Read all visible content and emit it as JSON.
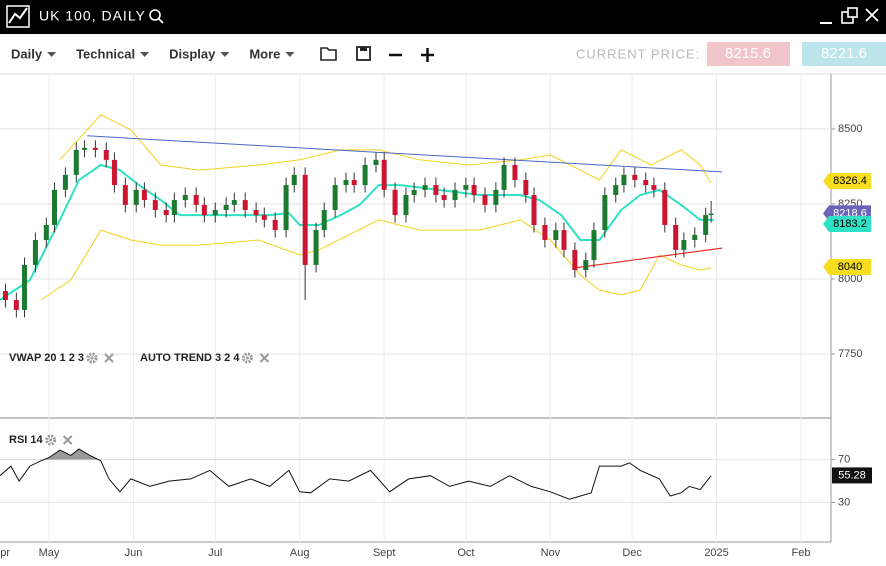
{
  "header": {
    "title": "UK 100, DAILY"
  },
  "toolbar": {
    "menus": [
      "Daily",
      "Technical",
      "Display",
      "More"
    ],
    "current_price_label": "CURRENT PRICE:",
    "sell": "8215.6",
    "buy": "8221.6"
  },
  "chart_data": [
    {
      "type": "candlestick",
      "indicators": [
        "VWAP 20 1 2 3",
        "AUTO TREND 3 2 4"
      ],
      "up_color": "#1b7a2f",
      "down_color": "#cc1530",
      "grid": true,
      "xlim": [
        12,
        317
      ],
      "ylim": [
        7537,
        8683
      ],
      "yticks": [
        8500,
        8250,
        8000,
        7750
      ],
      "xticks": [
        0,
        30,
        61,
        91,
        122,
        153,
        183,
        214,
        244,
        275,
        306
      ],
      "x": [
        14,
        18,
        21,
        25,
        29,
        32,
        36,
        40,
        43,
        47,
        51,
        54,
        58,
        62,
        65,
        69,
        73,
        76,
        80,
        84,
        87,
        91,
        95,
        98,
        102,
        106,
        109,
        113,
        117,
        120,
        124,
        128,
        131,
        135,
        139,
        142,
        146,
        150,
        153,
        157,
        161,
        164,
        168,
        172,
        175,
        179,
        183,
        186,
        190,
        194,
        197,
        201,
        205,
        208,
        212,
        216,
        219,
        223,
        227,
        230,
        234,
        238,
        241,
        245,
        249,
        252,
        256,
        260,
        263,
        267,
        271,
        273
      ],
      "open": [
        7960,
        7930,
        7897,
        8047,
        8130,
        8180,
        8297,
        8347,
        8430,
        8437,
        8430,
        8397,
        8313,
        8247,
        8297,
        8263,
        8230,
        8213,
        8263,
        8280,
        8247,
        8213,
        8230,
        8247,
        8263,
        8230,
        8213,
        8197,
        8163,
        8313,
        8347,
        8047,
        8163,
        8230,
        8313,
        8330,
        8313,
        8380,
        8397,
        8297,
        8213,
        8280,
        8297,
        8313,
        8280,
        8263,
        8297,
        8313,
        8280,
        8247,
        8297,
        8380,
        8330,
        8280,
        8180,
        8130,
        8163,
        8097,
        8030,
        8063,
        8163,
        8280,
        8313,
        8347,
        8330,
        8313,
        8297,
        8180,
        8097,
        8130,
        8147,
        8213
      ],
      "high": [
        7985,
        7955,
        8072,
        8155,
        8205,
        8322,
        8372,
        8455,
        8462,
        8462,
        8455,
        8422,
        8338,
        8322,
        8322,
        8288,
        8255,
        8288,
        8305,
        8305,
        8272,
        8255,
        8272,
        8288,
        8288,
        8255,
        8238,
        8222,
        8338,
        8372,
        8372,
        8188,
        8255,
        8338,
        8355,
        8355,
        8405,
        8422,
        8422,
        8322,
        8305,
        8322,
        8338,
        8338,
        8305,
        8322,
        8338,
        8338,
        8305,
        8322,
        8405,
        8405,
        8355,
        8305,
        8205,
        8188,
        8188,
        8122,
        8088,
        8188,
        8305,
        8338,
        8372,
        8372,
        8355,
        8338,
        8322,
        8205,
        8155,
        8172,
        8238,
        8260
      ],
      "low": [
        7905,
        7872,
        7872,
        8022,
        8105,
        8155,
        8272,
        8322,
        8405,
        8405,
        8372,
        8288,
        8222,
        8222,
        8238,
        8205,
        8188,
        8188,
        8238,
        8222,
        8188,
        8188,
        8205,
        8222,
        8205,
        8188,
        8172,
        8138,
        8138,
        8288,
        7930,
        8022,
        8138,
        8205,
        8288,
        8288,
        8288,
        8355,
        8272,
        8188,
        8188,
        8255,
        8272,
        8255,
        8238,
        8238,
        8272,
        8255,
        8222,
        8222,
        8272,
        8305,
        8255,
        8155,
        8105,
        8105,
        8072,
        8005,
        8005,
        8038,
        8138,
        8255,
        8288,
        8305,
        8288,
        8272,
        8155,
        8072,
        8072,
        8105,
        8122,
        8188
      ],
      "close": [
        7930,
        7897,
        8047,
        8130,
        8180,
        8297,
        8347,
        8430,
        8437,
        8430,
        8397,
        8313,
        8247,
        8297,
        8263,
        8230,
        8213,
        8263,
        8280,
        8247,
        8213,
        8230,
        8247,
        8263,
        8230,
        8213,
        8197,
        8163,
        8313,
        8347,
        8047,
        8163,
        8230,
        8313,
        8330,
        8313,
        8380,
        8397,
        8297,
        8213,
        8280,
        8297,
        8313,
        8280,
        8263,
        8297,
        8313,
        8280,
        8247,
        8297,
        8380,
        8330,
        8280,
        8180,
        8130,
        8163,
        8097,
        8030,
        8063,
        8163,
        8280,
        8313,
        8347,
        8330,
        8313,
        8297,
        8180,
        8097,
        8130,
        8147,
        8213,
        8218
      ],
      "series": [
        {
          "color": "#2ee0c4",
          "width": 2,
          "x": [
            12,
            23,
            34,
            41,
            49,
            56,
            63,
            71,
            78,
            85,
            100,
            111,
            118,
            122,
            129,
            137,
            144,
            151,
            159,
            173,
            188,
            203,
            210,
            218,
            225,
            232,
            240,
            247,
            254,
            262,
            269,
            274
          ],
          "values": [
            7930,
            7997,
            8197,
            8330,
            8380,
            8363,
            8313,
            8263,
            8213,
            8213,
            8213,
            8213,
            8220,
            8180,
            8180,
            8213,
            8247,
            8313,
            8313,
            8297,
            8280,
            8280,
            8263,
            8213,
            8130,
            8130,
            8230,
            8280,
            8297,
            8247,
            8197,
            8197
          ]
        },
        {
          "color": "#f2d21b",
          "width": 1,
          "x": [
            34,
            49,
            60,
            71,
            85,
            107,
            122,
            137,
            151,
            166,
            184,
            203,
            214,
            225,
            232,
            240,
            251,
            262,
            269,
            273
          ],
          "values": [
            8397,
            8547,
            8497,
            8380,
            8363,
            8380,
            8397,
            8430,
            8430,
            8397,
            8380,
            8397,
            8413,
            8363,
            8330,
            8430,
            8380,
            8430,
            8380,
            8320
          ]
        },
        {
          "color": "#f2d21b",
          "width": 1,
          "x": [
            27,
            38,
            49,
            60,
            71,
            85,
            107,
            122,
            129,
            140,
            151,
            166,
            188,
            203,
            214,
            225,
            232,
            240,
            247,
            254,
            262,
            269,
            273
          ],
          "values": [
            7930,
            7997,
            8163,
            8130,
            8113,
            8113,
            8130,
            8080,
            8097,
            8147,
            8197,
            8163,
            8163,
            8197,
            8130,
            8013,
            7963,
            7947,
            7963,
            8080,
            8047,
            8030,
            8037
          ]
        },
        {
          "color": "#4a67c9",
          "width": 1,
          "x": [
            44,
            277
          ],
          "values": [
            8477,
            8357
          ]
        },
        {
          "color": "#e8302a",
          "width": 1.2,
          "x": [
            223,
            277
          ],
          "values": [
            8037,
            8103
          ]
        }
      ],
      "price_labels": [
        {
          "value": 8326.4,
          "color": "#f7dd1f",
          "text_color": "#000000"
        },
        {
          "value": 8218.6,
          "color": "#6c63b8",
          "text_color": "#ffffff"
        },
        {
          "value": 8183.2,
          "color": "#2ee0c4",
          "text_color": "#000000"
        },
        {
          "value": 8040,
          "color": "#f7dd1f",
          "text_color": "#000000"
        }
      ]
    },
    {
      "type": "line",
      "indicator": "RSI 14",
      "grid": true,
      "overbought_fill": "#9a9a9a",
      "xlim": [
        12,
        317
      ],
      "ylim": [
        -7,
        109
      ],
      "yticks": [
        70,
        30
      ],
      "xticks": [
        {
          "value": 0,
          "label": "Apr"
        },
        {
          "value": 30,
          "label": "May"
        },
        {
          "value": 61,
          "label": "Jun"
        },
        {
          "value": 91,
          "label": "Jul"
        },
        {
          "value": 122,
          "label": "Aug"
        },
        {
          "value": 153,
          "label": "Sept"
        },
        {
          "value": 183,
          "label": "Oct"
        },
        {
          "value": 214,
          "label": "Nov"
        },
        {
          "value": 244,
          "label": "Dec"
        },
        {
          "value": 275,
          "label": "2025"
        },
        {
          "value": 306,
          "label": "Feb"
        }
      ],
      "last_value": 55.28,
      "series": [
        {
          "color": "#111111",
          "x": [
            12,
            16,
            19,
            23,
            27,
            30,
            34,
            38,
            41,
            45,
            49,
            52,
            56,
            60,
            67,
            74,
            82,
            89,
            96,
            104,
            111,
            118,
            122,
            126,
            133,
            140,
            148,
            155,
            162,
            170,
            177,
            184,
            192,
            199,
            207,
            214,
            221,
            229,
            232,
            240,
            243,
            247,
            254,
            258,
            262,
            265,
            269,
            273
          ],
          "values": [
            55,
            64,
            50,
            64,
            69,
            72,
            79,
            74,
            80,
            74,
            69,
            52,
            40,
            52,
            45,
            50,
            52,
            60,
            45,
            52,
            45,
            60,
            40,
            39,
            52,
            50,
            60,
            40,
            52,
            55,
            45,
            50,
            45,
            55,
            45,
            40,
            33,
            39,
            64,
            64,
            67,
            60,
            52,
            36,
            39,
            45,
            42,
            55
          ]
        }
      ]
    }
  ]
}
